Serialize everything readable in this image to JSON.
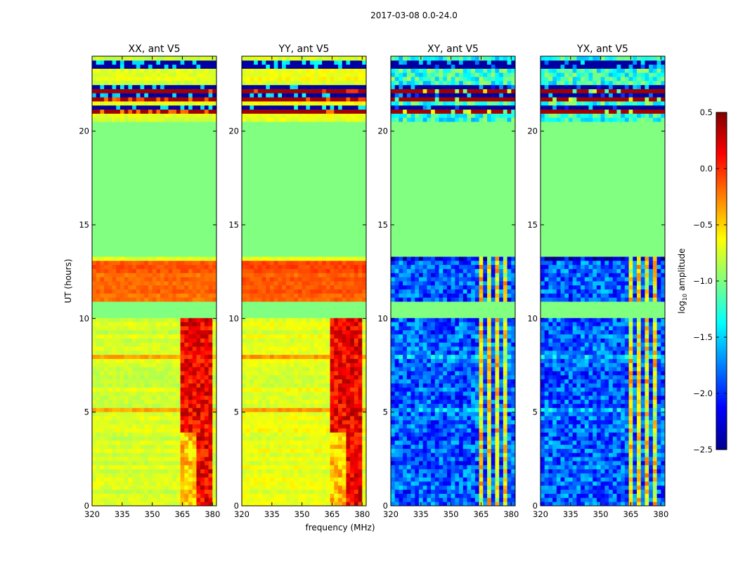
{
  "chart_data": {
    "type": "heatmap",
    "suptitle": "2017-03-08 0.0-24.0",
    "xlabel": "frequency (MHz)",
    "ylabel": "UT (hours)",
    "xlim": [
      320,
      382
    ],
    "ylim": [
      0,
      24
    ],
    "xticks": [
      "320",
      "335",
      "350",
      "365",
      "380"
    ],
    "yticks": [
      "0",
      "5",
      "10",
      "15",
      "20"
    ],
    "xtick_values": [
      320,
      335,
      350,
      365,
      380
    ],
    "ytick_values": [
      0,
      5,
      10,
      15,
      20
    ],
    "colormap": "jet",
    "colorbar": {
      "label_main": "log",
      "label_sub": "10",
      "label_rest": " amplitude",
      "range": [
        -2.5,
        0.5
      ],
      "ticks": [
        "0.5",
        "0.0",
        "−0.5",
        "−1.0",
        "−1.5",
        "−2.0",
        "−2.5"
      ],
      "tick_values": [
        0.5,
        0.0,
        -0.5,
        -1.0,
        -1.5,
        -2.0,
        -2.5
      ]
    },
    "flagged_ut_ranges": [
      [
        10.0,
        11.0
      ],
      [
        13.4,
        20.6
      ]
    ],
    "panels": [
      {
        "title": "XX, ant V5",
        "type": "co-pol",
        "base_level": -0.75,
        "rfi_band_MHz": [
          364,
          380
        ],
        "rfi_level": 0.15
      },
      {
        "title": "YY, ant V5",
        "type": "co-pol",
        "base_level": -0.7,
        "rfi_band_MHz": [
          364,
          380
        ],
        "rfi_level": 0.15
      },
      {
        "title": "XY, ant V5",
        "type": "cross-pol",
        "base_level": -2.2,
        "rfi_columns_MHz": [
          365,
          369.5,
          373.5,
          377.5
        ],
        "rfi_level": -0.6
      },
      {
        "title": "YX, ant V5",
        "type": "cross-pol",
        "base_level": -2.2,
        "rfi_columns_MHz": [
          365,
          369.5,
          373.5,
          377.5
        ],
        "rfi_level": -0.6
      }
    ]
  }
}
